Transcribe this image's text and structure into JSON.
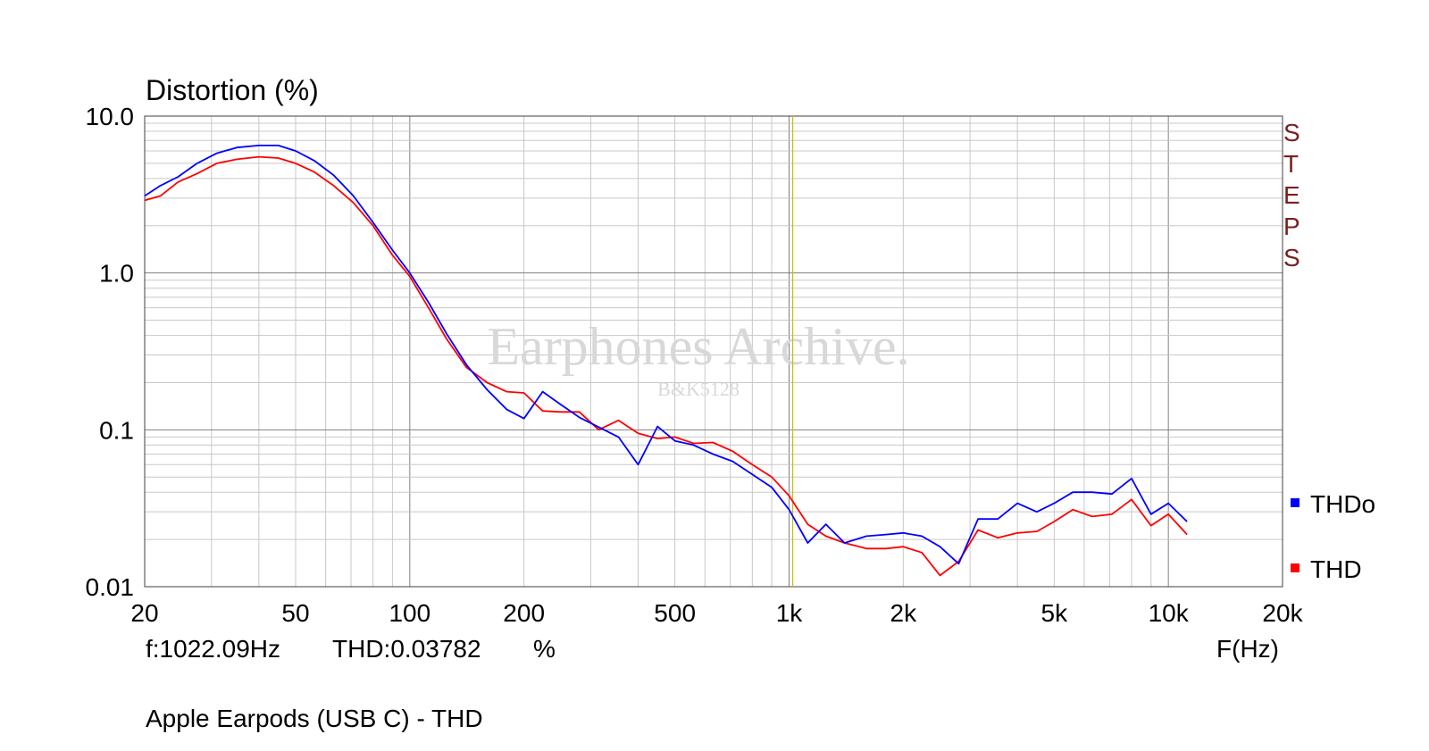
{
  "chart_data": {
    "type": "line",
    "title": "Distortion (%)",
    "subtitle": "Apple Earpods (USB C) - THD",
    "xlabel": "F(Hz)",
    "ylabel": "",
    "xscale": "log",
    "yscale": "log",
    "xlim": [
      20,
      20000
    ],
    "ylim": [
      0.01,
      10.0
    ],
    "grid": true,
    "x_ticks": [
      {
        "v": 20,
        "label": "20"
      },
      {
        "v": 50,
        "label": "50"
      },
      {
        "v": 100,
        "label": "100"
      },
      {
        "v": 200,
        "label": "200"
      },
      {
        "v": 500,
        "label": "500"
      },
      {
        "v": 1000,
        "label": "1k"
      },
      {
        "v": 2000,
        "label": "2k"
      },
      {
        "v": 5000,
        "label": "5k"
      },
      {
        "v": 10000,
        "label": "10k"
      },
      {
        "v": 20000,
        "label": "20k"
      }
    ],
    "y_ticks": [
      {
        "v": 10.0,
        "label": "10.0"
      },
      {
        "v": 1.0,
        "label": "1.0"
      },
      {
        "v": 0.1,
        "label": "0.1"
      },
      {
        "v": 0.01,
        "label": "0.01"
      }
    ],
    "cursor": {
      "x": 1022.09,
      "readout_freq": "f:1022.09Hz",
      "readout_thd": "THD:0.03782",
      "readout_unit": "%"
    },
    "side_text": [
      "S",
      "T",
      "E",
      "P",
      "S"
    ],
    "watermark": {
      "main": "Earphones Archive.",
      "sub": "B&K5128"
    },
    "legend_position": "right",
    "series": [
      {
        "name": "THDo",
        "color": "#0000ff",
        "points": [
          [
            20,
            3.1
          ],
          [
            22,
            3.6
          ],
          [
            24.5,
            4.1
          ],
          [
            27.5,
            5.0
          ],
          [
            31,
            5.8
          ],
          [
            35,
            6.3
          ],
          [
            40,
            6.5
          ],
          [
            45,
            6.5
          ],
          [
            50,
            6.0
          ],
          [
            56,
            5.2
          ],
          [
            63,
            4.2
          ],
          [
            71,
            3.1
          ],
          [
            80,
            2.1
          ],
          [
            90,
            1.4
          ],
          [
            100,
            1.0
          ],
          [
            112,
            0.65
          ],
          [
            125,
            0.41
          ],
          [
            141,
            0.26
          ],
          [
            160,
            0.18
          ],
          [
            180,
            0.135
          ],
          [
            200,
            0.118
          ],
          [
            224,
            0.175
          ],
          [
            250,
            0.145
          ],
          [
            280,
            0.12
          ],
          [
            315,
            0.104
          ],
          [
            355,
            0.09
          ],
          [
            400,
            0.06
          ],
          [
            450,
            0.105
          ],
          [
            500,
            0.085
          ],
          [
            560,
            0.08
          ],
          [
            630,
            0.07
          ],
          [
            710,
            0.063
          ],
          [
            800,
            0.052
          ],
          [
            900,
            0.043
          ],
          [
            1000,
            0.031
          ],
          [
            1120,
            0.019
          ],
          [
            1250,
            0.025
          ],
          [
            1400,
            0.019
          ],
          [
            1600,
            0.021
          ],
          [
            1800,
            0.0215
          ],
          [
            2000,
            0.022
          ],
          [
            2240,
            0.021
          ],
          [
            2500,
            0.018
          ],
          [
            2800,
            0.014
          ],
          [
            3150,
            0.027
          ],
          [
            3550,
            0.027
          ],
          [
            4000,
            0.034
          ],
          [
            4500,
            0.03
          ],
          [
            5000,
            0.034
          ],
          [
            5600,
            0.04
          ],
          [
            6300,
            0.04
          ],
          [
            7100,
            0.039
          ],
          [
            8000,
            0.049
          ],
          [
            9000,
            0.029
          ],
          [
            10000,
            0.034
          ],
          [
            11200,
            0.026
          ]
        ]
      },
      {
        "name": "THD",
        "color": "#ff0000",
        "points": [
          [
            20,
            2.9
          ],
          [
            22,
            3.1
          ],
          [
            24.5,
            3.8
          ],
          [
            27.5,
            4.3
          ],
          [
            31,
            5.0
          ],
          [
            35,
            5.3
          ],
          [
            40,
            5.5
          ],
          [
            45,
            5.4
          ],
          [
            50,
            5.0
          ],
          [
            56,
            4.4
          ],
          [
            63,
            3.6
          ],
          [
            71,
            2.8
          ],
          [
            80,
            2.0
          ],
          [
            90,
            1.3
          ],
          [
            100,
            0.95
          ],
          [
            112,
            0.6
          ],
          [
            125,
            0.38
          ],
          [
            141,
            0.25
          ],
          [
            160,
            0.2
          ],
          [
            180,
            0.175
          ],
          [
            200,
            0.172
          ],
          [
            224,
            0.132
          ],
          [
            250,
            0.13
          ],
          [
            280,
            0.13
          ],
          [
            315,
            0.1
          ],
          [
            355,
            0.115
          ],
          [
            400,
            0.095
          ],
          [
            450,
            0.088
          ],
          [
            500,
            0.09
          ],
          [
            560,
            0.082
          ],
          [
            630,
            0.083
          ],
          [
            710,
            0.073
          ],
          [
            800,
            0.06
          ],
          [
            900,
            0.05
          ],
          [
            1000,
            0.038
          ],
          [
            1120,
            0.025
          ],
          [
            1250,
            0.021
          ],
          [
            1400,
            0.019
          ],
          [
            1600,
            0.0175
          ],
          [
            1800,
            0.0175
          ],
          [
            2000,
            0.018
          ],
          [
            2240,
            0.0165
          ],
          [
            2500,
            0.0118
          ],
          [
            2800,
            0.0145
          ],
          [
            3150,
            0.023
          ],
          [
            3550,
            0.0205
          ],
          [
            4000,
            0.022
          ],
          [
            4500,
            0.0225
          ],
          [
            5000,
            0.026
          ],
          [
            5600,
            0.031
          ],
          [
            6300,
            0.028
          ],
          [
            7100,
            0.029
          ],
          [
            8000,
            0.036
          ],
          [
            9000,
            0.0245
          ],
          [
            10000,
            0.029
          ],
          [
            11200,
            0.0215
          ]
        ]
      }
    ]
  },
  "colors": {
    "major_grid": "#808080",
    "minor_grid": "#c8c8c8",
    "cursor": "#c8c000",
    "steps": "#7a1f1f"
  }
}
